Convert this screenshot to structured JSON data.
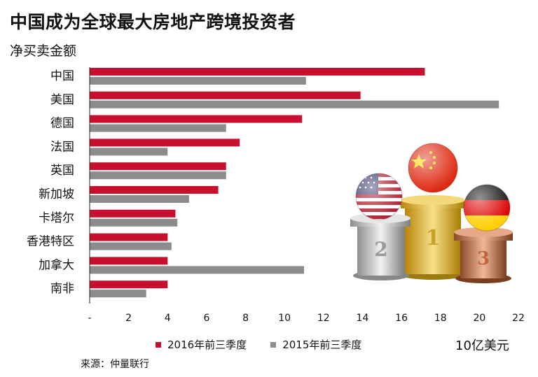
{
  "header": {
    "title": "中国成为全球最大房地产跨境投资者",
    "subtitle": "净买卖金额"
  },
  "legend": {
    "series_2016": "2016年前三季度",
    "series_2015": "2015年前三季度"
  },
  "unit_label": "10亿美元",
  "source": "来源：仲量联行",
  "colors": {
    "series_2016": "#c8102e",
    "series_2015": "#8c8c8c"
  },
  "podium": {
    "first": "1",
    "second": "2",
    "third": "3"
  },
  "chart_data": {
    "type": "bar",
    "orientation": "horizontal",
    "title": "中国成为全球最大房地产跨境投资者",
    "subtitle": "净买卖金额",
    "xlabel": "10亿美元",
    "categories": [
      "中国",
      "美国",
      "德国",
      "法国",
      "英国",
      "新加坡",
      "卡塔尔",
      "香港特区",
      "加拿大",
      "南非"
    ],
    "series": [
      {
        "name": "2016年前三季度",
        "color": "#c8102e",
        "values": [
          17.2,
          13.9,
          10.9,
          7.7,
          7.0,
          6.6,
          4.4,
          4.0,
          4.0,
          4.0
        ]
      },
      {
        "name": "2015年前三季度",
        "color": "#8c8c8c",
        "values": [
          11.1,
          21.0,
          7.0,
          4.0,
          7.0,
          5.1,
          4.5,
          4.2,
          11.0,
          2.9
        ]
      }
    ],
    "xlim": [
      0,
      22
    ],
    "xticks": [
      "-",
      "2",
      "4",
      "6",
      "8",
      "10",
      "12",
      "14",
      "16",
      "18",
      "20",
      "22"
    ],
    "grid": false,
    "legend_position": "bottom"
  }
}
